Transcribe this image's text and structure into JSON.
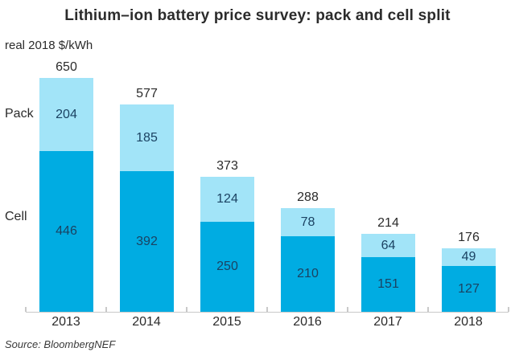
{
  "title": "Lithium–ion battery price survey: pack and cell split",
  "unit_label": "real 2018 $/kWh",
  "source": "Source: BloombergNEF",
  "colors": {
    "pack_fill": "#a2e4f8",
    "cell_fill": "#00ace2",
    "value_text": "#1b4262",
    "axis": "#c9c9c9",
    "text": "#2b2b2b"
  },
  "chart_data": {
    "type": "bar",
    "stacked": true,
    "title": "Lithium–ion battery price survey: pack and cell split",
    "ylabel": "real 2018 $/kWh",
    "xlabel": "",
    "categories": [
      "2013",
      "2014",
      "2015",
      "2016",
      "2017",
      "2018"
    ],
    "series": [
      {
        "name": "Pack",
        "position": "top",
        "color": "#a2e4f8",
        "values": [
          204,
          185,
          124,
          78,
          64,
          49
        ]
      },
      {
        "name": "Cell",
        "position": "bottom",
        "color": "#00ace2",
        "values": [
          446,
          392,
          250,
          210,
          151,
          127
        ]
      }
    ],
    "totals": [
      650,
      577,
      373,
      288,
      214,
      176
    ],
    "ylim": [
      0,
      650
    ],
    "grid": false,
    "legend_position": "left-inline",
    "source": "Source: BloombergNEF"
  }
}
